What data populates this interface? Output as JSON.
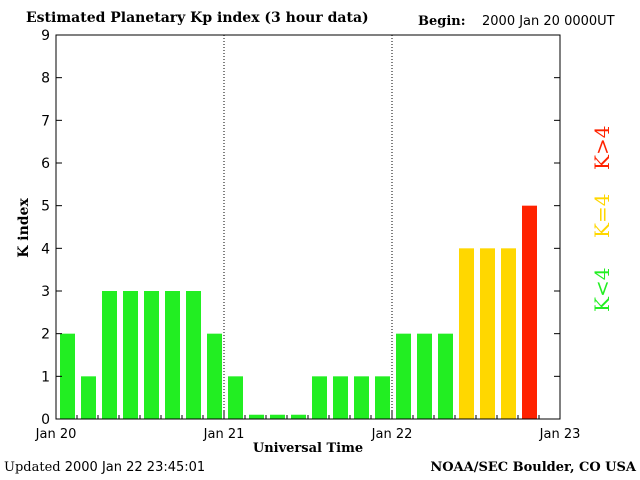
{
  "header": {
    "title": "Estimated Planetary Kp index (3 hour data)",
    "begin_label": "Begin:",
    "begin_value": "2000 Jan 20 0000UT"
  },
  "footer": {
    "updated_label": "Updated",
    "updated_value": "2000 Jan 22 23:45:01",
    "credit": "NOAA/SEC Boulder, CO USA"
  },
  "legend": [
    {
      "label": "K<4",
      "color": "#22ee22"
    },
    {
      "label": "K=4",
      "color": "#ffd700"
    },
    {
      "label": "K>4",
      "color": "#ff2200"
    }
  ],
  "colors": {
    "low": "#22ee22",
    "equal": "#ffd700",
    "high": "#ff2200"
  },
  "chart_data": {
    "type": "bar",
    "title": "Estimated Planetary Kp index (3 hour data)",
    "xlabel": "Universal Time",
    "ylabel": "K index",
    "ylim": [
      0,
      9
    ],
    "yticks": [
      0,
      1,
      2,
      3,
      4,
      5,
      6,
      7,
      8,
      9
    ],
    "xlim": [
      0,
      24
    ],
    "xticks": [
      {
        "pos": 0,
        "label": "Jan 20"
      },
      {
        "pos": 8,
        "label": "Jan 21"
      },
      {
        "pos": 16,
        "label": "Jan 22"
      },
      {
        "pos": 24,
        "label": "Jan 23"
      }
    ],
    "day_separators": [
      8,
      16
    ],
    "values": [
      2,
      1,
      3,
      3,
      3,
      3,
      3,
      2,
      1,
      0.1,
      0.1,
      0.1,
      1,
      1,
      1,
      1,
      2,
      2,
      2,
      4,
      4,
      4,
      5
    ],
    "grid": false
  }
}
